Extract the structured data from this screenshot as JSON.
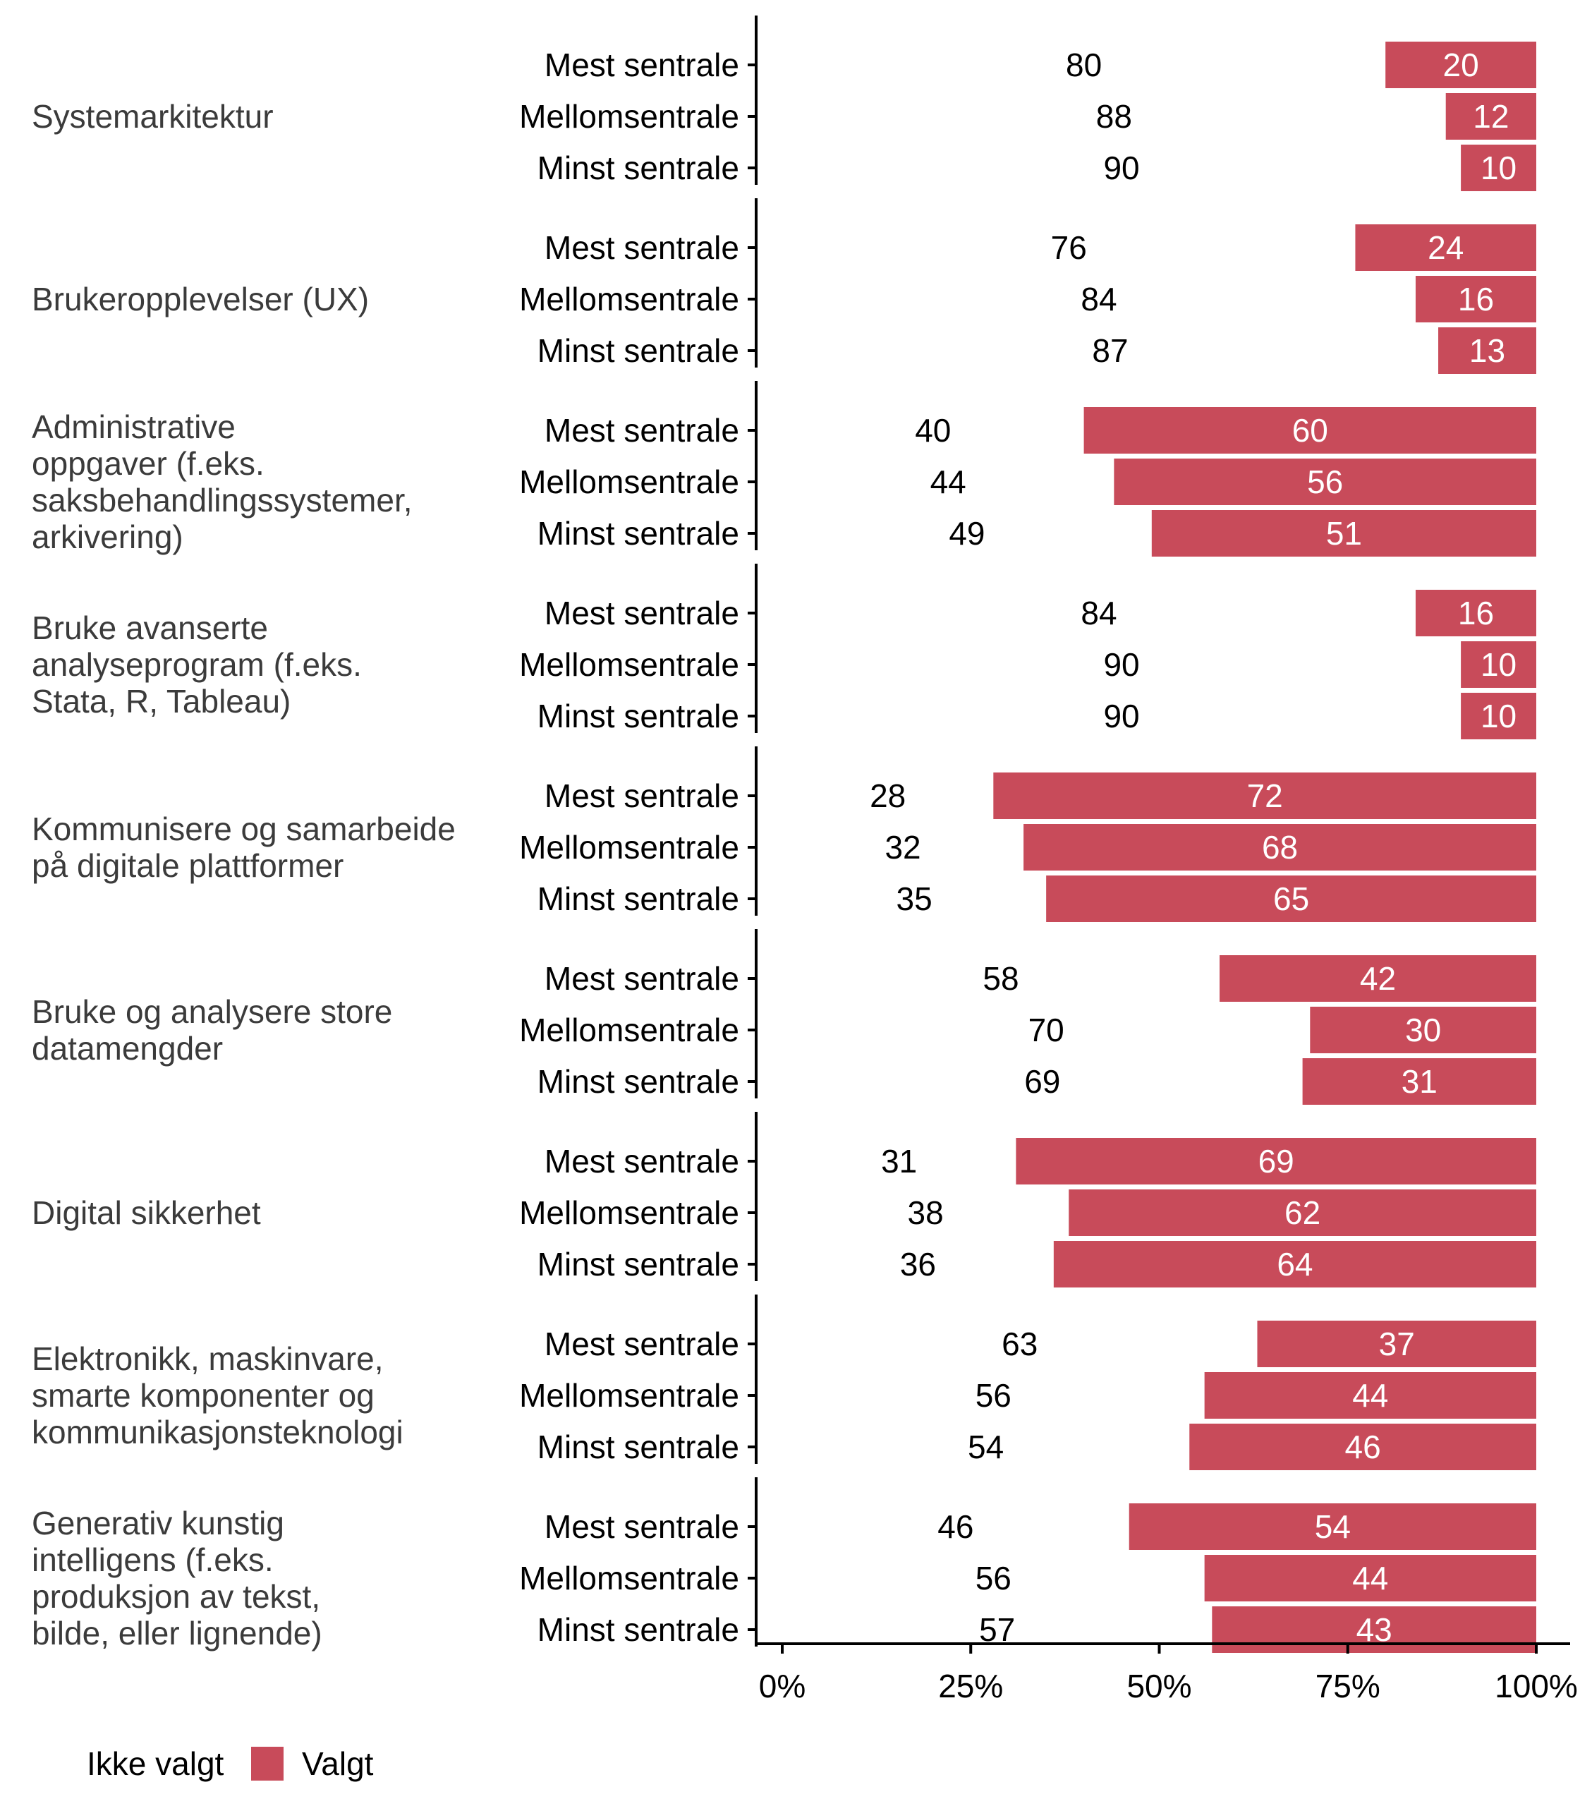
{
  "chart_data": {
    "type": "bar",
    "orientation": "horizontal-stacked-100",
    "title": "",
    "xlabel": "",
    "ylabel": "",
    "xlim": [
      0,
      100
    ],
    "x_ticks": [
      "0%",
      "25%",
      "50%",
      "75%",
      "100%"
    ],
    "grid": false,
    "legend_position": "bottom-left",
    "legend": [
      {
        "name": "Ikke valgt",
        "color": "#ffffff"
      },
      {
        "name": "Valgt",
        "color": "#c84b5a"
      }
    ],
    "row_labels": [
      "Mest sentrale",
      "Mellomsentrale",
      "Minst sentrale"
    ],
    "groups": [
      {
        "label": [
          "Systemarkitektur"
        ],
        "ikke_valgt": [
          80,
          88,
          90
        ],
        "valgt": [
          20,
          12,
          10
        ]
      },
      {
        "label": [
          "Brukeropplevelser (UX)"
        ],
        "ikke_valgt": [
          76,
          84,
          87
        ],
        "valgt": [
          24,
          16,
          13
        ]
      },
      {
        "label": [
          "Administrative",
          "oppgaver (f.eks.",
          "saksbehandlingssystemer,",
          "arkivering)"
        ],
        "ikke_valgt": [
          40,
          44,
          49
        ],
        "valgt": [
          60,
          56,
          51
        ]
      },
      {
        "label": [
          "Bruke avanserte",
          "analyseprogram (f.eks.",
          "Stata, R, Tableau)"
        ],
        "ikke_valgt": [
          84,
          90,
          90
        ],
        "valgt": [
          16,
          10,
          10
        ]
      },
      {
        "label": [
          "Kommunisere og samarbeide",
          "på digitale plattformer"
        ],
        "ikke_valgt": [
          28,
          32,
          35
        ],
        "valgt": [
          72,
          68,
          65
        ]
      },
      {
        "label": [
          "Bruke og analysere store",
          "datamengder"
        ],
        "ikke_valgt": [
          58,
          70,
          69
        ],
        "valgt": [
          42,
          30,
          31
        ]
      },
      {
        "label": [
          "Digital sikkerhet"
        ],
        "ikke_valgt": [
          31,
          38,
          36
        ],
        "valgt": [
          69,
          62,
          64
        ]
      },
      {
        "label": [
          "Elektronikk, maskinvare,",
          "smarte komponenter og",
          "kommunikasjonsteknologi"
        ],
        "ikke_valgt": [
          63,
          56,
          54
        ],
        "valgt": [
          37,
          44,
          46
        ]
      },
      {
        "label": [
          "Generativ kunstig",
          "intelligens (f.eks.",
          "produksjon av tekst,",
          "bilde, eller lignende)"
        ],
        "ikke_valgt": [
          46,
          56,
          57
        ],
        "valgt": [
          54,
          44,
          43
        ]
      }
    ]
  }
}
